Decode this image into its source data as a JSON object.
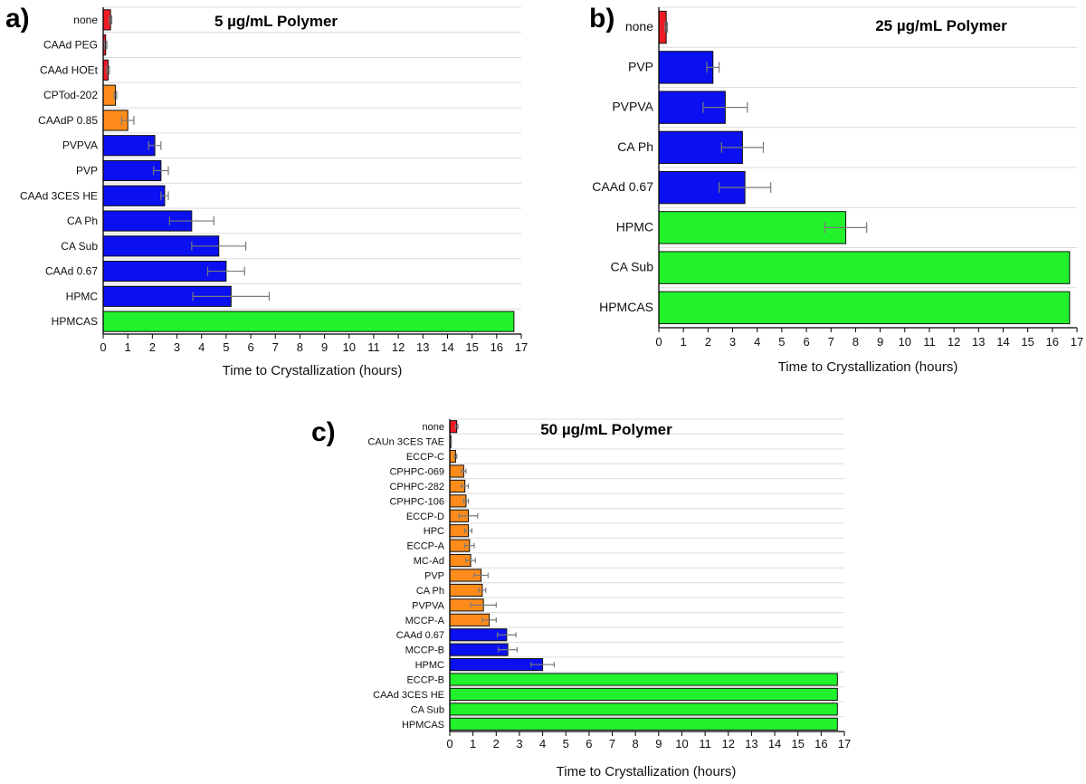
{
  "chart_data": [
    {
      "type": "bar",
      "orientation": "horizontal",
      "panel": "a)",
      "title": "5 µg/mL Polymer",
      "xlabel": "Time to Crystallization (hours)",
      "ylabel": "",
      "xlim": [
        0,
        17
      ],
      "xticks": [
        0,
        1,
        2,
        3,
        4,
        5,
        6,
        7,
        8,
        9,
        10,
        11,
        12,
        13,
        14,
        15,
        16,
        17
      ],
      "categories": [
        "none",
        "CAAd PEG",
        "CAAd HOEt",
        "CPTod-202",
        "CAAdP 0.85",
        "PVPVA",
        "PVP",
        "CAAd 3CES HE",
        "CA Ph",
        "CA Sub",
        "CAAd 0.67",
        "HPMC",
        "HPMCAS"
      ],
      "values": [
        0.3,
        0.1,
        0.2,
        0.5,
        1.0,
        2.1,
        2.35,
        2.5,
        3.6,
        4.7,
        5.0,
        5.2,
        16.7
      ],
      "errors": [
        0.05,
        0.05,
        0.05,
        0.05,
        0.25,
        0.25,
        0.3,
        0.15,
        0.9,
        1.1,
        0.75,
        1.55,
        0
      ],
      "colors": [
        "red",
        "red",
        "red",
        "orange",
        "orange",
        "blue",
        "blue",
        "blue",
        "blue",
        "blue",
        "blue",
        "blue",
        "green"
      ]
    },
    {
      "type": "bar",
      "orientation": "horizontal",
      "panel": "b)",
      "title": "25 µg/mL Polymer",
      "xlabel": "Time to Crystallization (hours)",
      "ylabel": "",
      "xlim": [
        0,
        17
      ],
      "xticks": [
        0,
        1,
        2,
        3,
        4,
        5,
        6,
        7,
        8,
        9,
        10,
        11,
        12,
        13,
        14,
        15,
        16,
        17
      ],
      "categories": [
        "none",
        "PVP",
        "PVPVA",
        "CA Ph",
        "CAAd 0.67",
        "HPMC",
        "CA Sub",
        "HPMCAS"
      ],
      "values": [
        0.3,
        2.2,
        2.7,
        3.4,
        3.5,
        7.6,
        16.7,
        16.7
      ],
      "errors": [
        0.05,
        0.25,
        0.9,
        0.85,
        1.05,
        0.85,
        0,
        0
      ],
      "colors": [
        "red",
        "blue",
        "blue",
        "blue",
        "blue",
        "green",
        "green",
        "green"
      ]
    },
    {
      "type": "bar",
      "orientation": "horizontal",
      "panel": "c)",
      "title": "50 µg/mL Polymer",
      "xlabel": "Time to Crystallization (hours)",
      "ylabel": "",
      "xlim": [
        0,
        17
      ],
      "xticks": [
        0,
        1,
        2,
        3,
        4,
        5,
        6,
        7,
        8,
        9,
        10,
        11,
        12,
        13,
        14,
        15,
        16,
        17
      ],
      "categories": [
        "none",
        "CAUn 3CES TAE",
        "ECCP-C",
        "CPHPC-069",
        "CPHPC-282",
        "CPHPC-106",
        "ECCP-D",
        "HPC",
        "ECCP-A",
        "MC-Ad",
        "PVP",
        "CA Ph",
        "PVPVA",
        "MCCP-A",
        "CAAd 0.67",
        "MCCP-B",
        "HPMC",
        "ECCP-B",
        "CAAd 3CES HE",
        "CA Sub",
        "HPMCAS"
      ],
      "values": [
        0.3,
        0.05,
        0.25,
        0.6,
        0.65,
        0.7,
        0.8,
        0.8,
        0.85,
        0.9,
        1.35,
        1.4,
        1.45,
        1.7,
        2.45,
        2.5,
        4.0,
        16.7,
        16.7,
        16.7,
        16.7
      ],
      "errors": [
        0.05,
        0.02,
        0.05,
        0.1,
        0.15,
        0.1,
        0.4,
        0.15,
        0.2,
        0.2,
        0.3,
        0.15,
        0.55,
        0.3,
        0.4,
        0.4,
        0.5,
        0,
        0,
        0,
        0
      ],
      "colors": [
        "red",
        "orange",
        "orange",
        "orange",
        "orange",
        "orange",
        "orange",
        "orange",
        "orange",
        "orange",
        "orange",
        "orange",
        "orange",
        "orange",
        "blue",
        "blue",
        "blue",
        "green",
        "green",
        "green",
        "green"
      ]
    }
  ],
  "palette": {
    "red": "#ee1c25",
    "orange": "#ff8c1a",
    "blue": "#0a10f0",
    "green": "#22f22b",
    "grid": "#dcdcdc",
    "axis": "#000000",
    "error": "#7a7a7a"
  }
}
